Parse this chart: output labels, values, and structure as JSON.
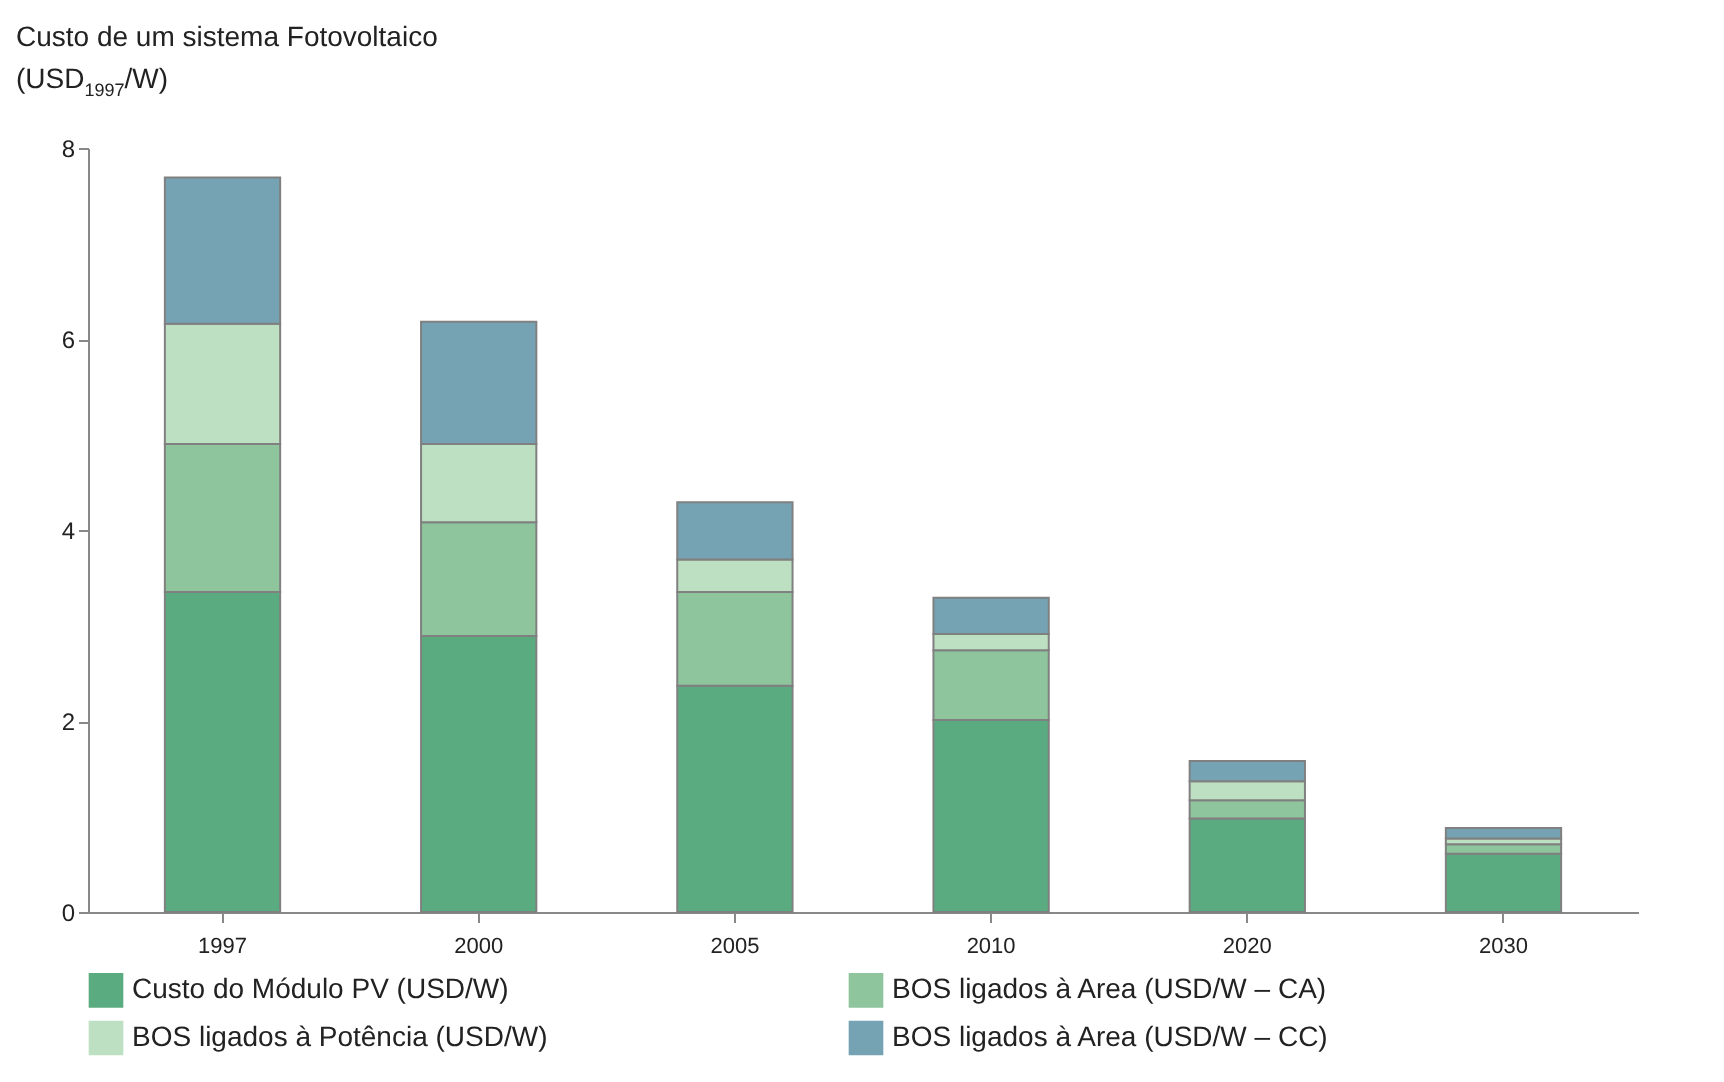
{
  "chart_data": {
    "type": "bar",
    "stacked": true,
    "ylabel": "Custo de um sistema Fotovoltaico (USD$_{1997}$/W)",
    "categories": [
      "1997",
      "2000",
      "2005",
      "2010",
      "2020",
      "2030"
    ],
    "series": [
      {
        "name": "Custo do Módulo PV (USD/W)",
        "color": "#5aac80",
        "values": [
          3.35,
          2.89,
          2.37,
          2.01,
          0.98,
          0.61
        ]
      },
      {
        "name": "BOS ligados à Area (USD/W – CA)",
        "color": "#8ec59c",
        "values": [
          1.55,
          1.19,
          0.98,
          0.73,
          0.19,
          0.1
        ]
      },
      {
        "name": "BOS ligados à Potência (USD/W)",
        "color": "#bde0c3",
        "values": [
          1.26,
          0.82,
          0.34,
          0.17,
          0.2,
          0.06
        ]
      },
      {
        "name": "BOS ligados à Area (USD/W – CC)",
        "color": "#75a3b3",
        "values": [
          1.53,
          1.28,
          0.6,
          0.38,
          0.21,
          0.11
        ]
      }
    ],
    "ylim": [
      0,
      8
    ],
    "yticks": [
      0,
      2,
      4,
      6,
      8
    ],
    "grid": false,
    "legend": "bottom"
  }
}
